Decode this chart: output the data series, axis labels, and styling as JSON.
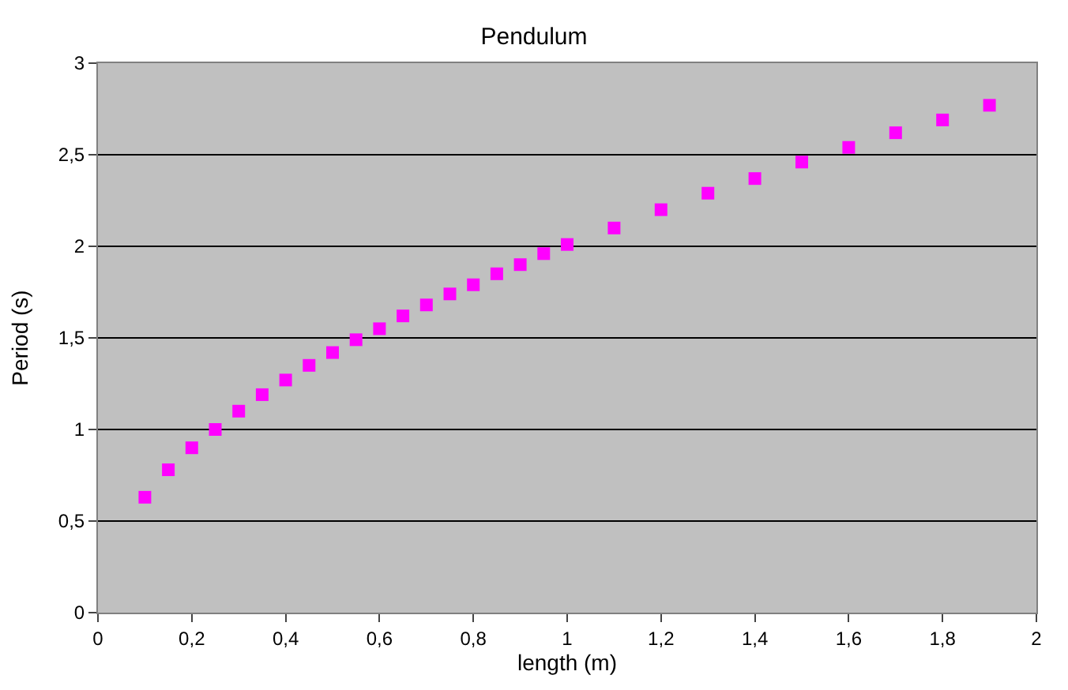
{
  "chart_data": {
    "type": "scatter",
    "title": "Pendulum",
    "xlabel": "length (m)",
    "ylabel": "Period (s)",
    "x": [
      0.1,
      0.15,
      0.2,
      0.25,
      0.3,
      0.35,
      0.4,
      0.45,
      0.5,
      0.55,
      0.6,
      0.65,
      0.7,
      0.75,
      0.8,
      0.85,
      0.9,
      0.95,
      1.0,
      1.1,
      1.2,
      1.3,
      1.4,
      1.5,
      1.6,
      1.7,
      1.8,
      1.9
    ],
    "series": [
      {
        "color": "#ff00ff",
        "values": [
          0.63,
          0.78,
          0.9,
          1.0,
          1.1,
          1.19,
          1.27,
          1.35,
          1.42,
          1.49,
          1.55,
          1.62,
          1.68,
          1.74,
          1.79,
          1.85,
          1.9,
          1.96,
          2.01,
          2.1,
          2.2,
          2.29,
          2.37,
          2.46,
          2.54,
          2.62,
          2.69,
          2.77
        ]
      }
    ],
    "xlim": [
      0,
      2
    ],
    "xticks": [
      0,
      {
        "value": 0.2,
        "label": "0,2"
      },
      {
        "value": 0.4,
        "label": "0,4"
      },
      {
        "value": 0.6,
        "label": "0,6"
      },
      {
        "value": 0.8,
        "label": "0,8"
      },
      1,
      {
        "value": 1.2,
        "label": "1,2"
      },
      {
        "value": 1.4,
        "label": "1,4"
      },
      {
        "value": 1.6,
        "label": "1,6"
      },
      {
        "value": 1.8,
        "label": "1,8"
      },
      2
    ],
    "ylim": [
      0,
      3
    ],
    "yticks": [
      0,
      {
        "value": 0.5,
        "label": "0,5"
      },
      1,
      {
        "value": 1.5,
        "label": "1,5"
      },
      2,
      {
        "value": 2.5,
        "label": "2,5"
      },
      3
    ],
    "grid": "y",
    "marker": "square"
  }
}
